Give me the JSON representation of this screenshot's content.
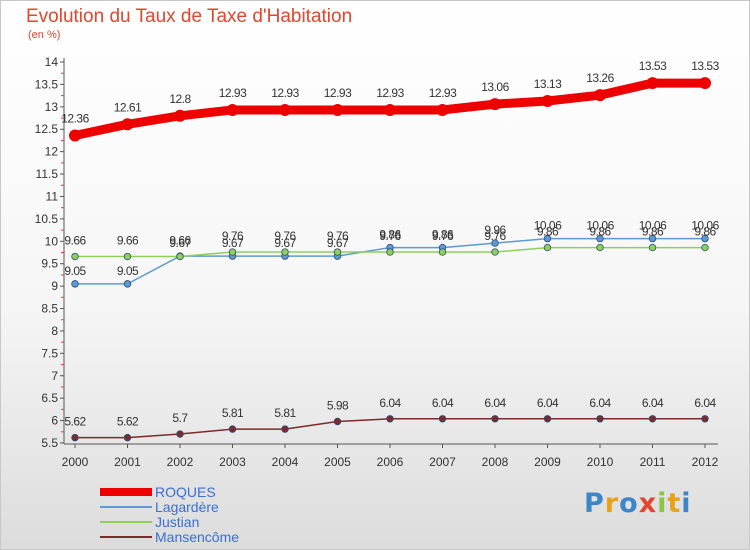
{
  "chart_data": {
    "type": "line",
    "title": "Evolution du Taux de Taxe d'Habitation",
    "subtitle": "(en %)",
    "xlabel": "",
    "ylabel": "",
    "x": [
      "2000",
      "2001",
      "2002",
      "2003",
      "2004",
      "2005",
      "2006",
      "2007",
      "2008",
      "2009",
      "2010",
      "2011",
      "2012"
    ],
    "y_ticks": [
      "5.5",
      "6",
      "6.5",
      "7",
      "7.5",
      "8",
      "8.5",
      "9",
      "9.5",
      "10",
      "10.5",
      "11",
      "11.5",
      "12",
      "12.5",
      "13",
      "13.5",
      "14"
    ],
    "ylim": [
      5.5,
      14
    ],
    "legend_position": "bottom-left",
    "series": [
      {
        "name": "ROQUES",
        "color": "#ee0000",
        "values": [
          12.36,
          12.61,
          12.8,
          12.93,
          12.93,
          12.93,
          12.93,
          12.93,
          13.06,
          13.13,
          13.26,
          13.53,
          13.53
        ],
        "labels": [
          "12.36",
          "12.61",
          "12.8",
          "12.93",
          "12.93",
          "12.93",
          "12.93",
          "12.93",
          "13.06",
          "13.13",
          "13.26",
          "13.53",
          "13.53"
        ]
      },
      {
        "name": "Lagardère",
        "color": "#5e9ad1",
        "values": [
          9.05,
          9.05,
          9.67,
          9.67,
          9.67,
          9.67,
          9.86,
          9.86,
          9.96,
          10.06,
          10.06,
          10.06,
          10.06
        ],
        "labels": [
          "9.05",
          "9.05",
          "9.67",
          "9.67",
          "9.67",
          "9.67",
          "9.86",
          "9.86",
          "9.96",
          "10.06",
          "10.06",
          "10.06",
          "10.06"
        ]
      },
      {
        "name": "Justian",
        "color": "#8fd05a",
        "values": [
          9.66,
          9.66,
          9.66,
          9.76,
          9.76,
          9.76,
          9.76,
          9.76,
          9.76,
          9.86,
          9.86,
          9.86,
          9.86
        ],
        "labels": [
          "9.66",
          "9.66",
          "9.66",
          "9.76",
          "9.76",
          "9.76",
          "9.76",
          "9.76",
          "9.76",
          "9.86",
          "9.86",
          "9.86",
          "9.86"
        ]
      },
      {
        "name": "Mansencôme",
        "color": "#7a2b2b",
        "values": [
          5.62,
          5.62,
          5.7,
          5.81,
          5.81,
          5.98,
          6.04,
          6.04,
          6.04,
          6.04,
          6.04,
          6.04,
          6.04
        ],
        "labels": [
          "5.62",
          "5.62",
          "5.7",
          "5.81",
          "5.81",
          "5.98",
          "6.04",
          "6.04",
          "6.04",
          "6.04",
          "6.04",
          "6.04",
          "6.04"
        ]
      }
    ]
  },
  "brand": {
    "letters": [
      {
        "ch": "P",
        "color": "#3b86c8"
      },
      {
        "ch": "r",
        "color": "#e8a21a"
      },
      {
        "ch": "o",
        "color": "#3b86c8"
      },
      {
        "ch": "x",
        "color": "#e3452d"
      },
      {
        "ch": "i",
        "color": "#8cc63f"
      },
      {
        "ch": "t",
        "color": "#e8a21a"
      },
      {
        "ch": "i",
        "color": "#3b86c8"
      }
    ]
  }
}
